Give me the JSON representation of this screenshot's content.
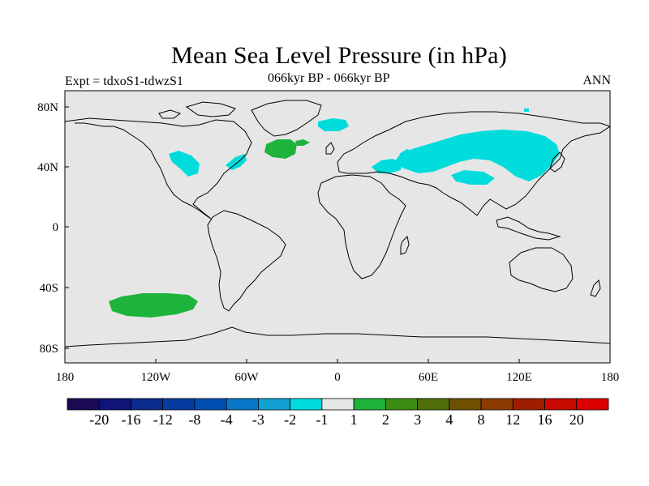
{
  "header": {
    "title": "Mean Sea Level Pressure (in hPa)",
    "experiment": "Expt = tdxoS1-tdwzS1",
    "period": "066kyr BP - 066kyr BP",
    "season": "ANN"
  },
  "map": {
    "lon_ticks": [
      "180",
      "120W",
      "60W",
      "0",
      "60E",
      "120E",
      "180"
    ],
    "lat_ticks": [
      "80N",
      "40N",
      "0",
      "40S",
      "80S"
    ],
    "background_color": "#e6e6e6"
  },
  "colorbar": {
    "colors": [
      "#1a0a55",
      "#0e1478",
      "#0a2a8c",
      "#063ca0",
      "#0050b4",
      "#0a78c8",
      "#10a0d2",
      "#00dcdc",
      "#e6e6e6",
      "#1eb43c",
      "#3c8c14",
      "#506e0a",
      "#6e5000",
      "#8c3c00",
      "#a01e00",
      "#c80a00",
      "#dc0000"
    ],
    "labels": [
      "-20",
      "-16",
      "-12",
      "-8",
      "-4",
      "-3",
      "-2",
      "-1",
      "1",
      "2",
      "3",
      "4",
      "8",
      "12",
      "16",
      "20"
    ]
  },
  "anomalies": [
    {
      "name": "north-atlantic-positive",
      "value": 2,
      "color": "#1eb43c"
    },
    {
      "name": "south-pacific-positive",
      "value": 2,
      "color": "#1eb43c"
    },
    {
      "name": "eurasia-negative",
      "value": -1,
      "color": "#00dcdc"
    },
    {
      "name": "north-america-negative",
      "value": -1,
      "color": "#00dcdc"
    },
    {
      "name": "arctic-negative",
      "value": -1,
      "color": "#00dcdc"
    }
  ]
}
